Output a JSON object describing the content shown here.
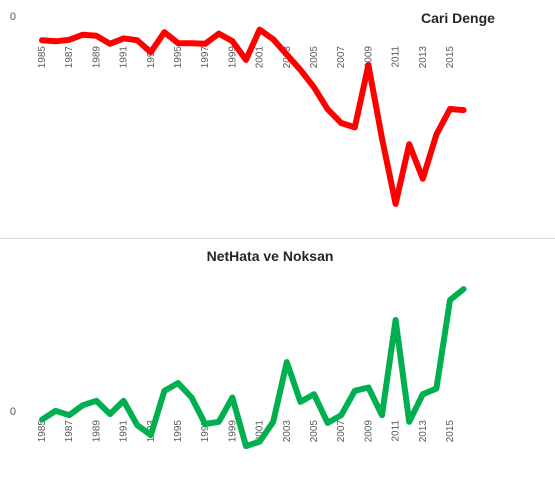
{
  "chart_data": [
    {
      "type": "line",
      "title": "Cari Denge",
      "xlabel": "",
      "ylabel": "",
      "x": [
        1985,
        1986,
        1987,
        1988,
        1989,
        1990,
        1991,
        1992,
        1993,
        1994,
        1995,
        1996,
        1997,
        1998,
        1999,
        2000,
        2001,
        2002,
        2003,
        2004,
        2005,
        2006,
        2007,
        2008,
        2009,
        2010,
        2011,
        2012,
        2013,
        2014,
        2015,
        2016
      ],
      "x_tick_labels": [
        "1985",
        "1987",
        "1989",
        "1991",
        "1993",
        "1995",
        "1997",
        "1999",
        "2001",
        "2003",
        "2005",
        "2007",
        "2009",
        "2011",
        "2013",
        "2015"
      ],
      "y_tick_labels": [
        "0",
        "",
        "",
        "",
        "",
        "",
        "",
        "",
        "",
        ""
      ],
      "ylim": [
        -80000,
        0
      ],
      "grid": false,
      "legend": "none",
      "color": "#ff0000",
      "series": [
        {
          "values": [
            -1000,
            -1500,
            -800,
            1500,
            1000,
            -2600,
            -200,
            -1000,
            -6400,
            2600,
            -2300,
            -2400,
            -2600,
            2000,
            -1400,
            -9900,
            3800,
            -600,
            -7500,
            -14400,
            -22300,
            -32200,
            -38400,
            -40400,
            -12200,
            -45400,
            -75000,
            -48000,
            -63600,
            -43600,
            -32100,
            -32600
          ]
        }
      ]
    },
    {
      "type": "line",
      "title": "NetHata ve Noksan",
      "xlabel": "",
      "ylabel": "",
      "x": [
        1985,
        1986,
        1987,
        1988,
        1989,
        1990,
        1991,
        1992,
        1993,
        1994,
        1995,
        1996,
        1997,
        1998,
        1999,
        2000,
        2001,
        2002,
        2003,
        2004,
        2005,
        2006,
        2007,
        2008,
        2009,
        2010,
        2011,
        2012,
        2013,
        2014,
        2015,
        2016
      ],
      "x_tick_labels": [
        "1985",
        "1987",
        "1989",
        "1991",
        "1993",
        "1995",
        "1997",
        "1999",
        "2001",
        "2003",
        "2005",
        "2007",
        "2009",
        "2011",
        "2013",
        "2015"
      ],
      "y_tick_labels": [
        "",
        "",
        "",
        "",
        "",
        "",
        "0",
        "",
        ""
      ],
      "ylim": [
        -4000,
        12000
      ],
      "grid": false,
      "legend": "none",
      "color": "#00b050",
      "series": [
        {
          "values": [
            -800,
            0,
            -400,
            500,
            900,
            -300,
            900,
            -1300,
            -2200,
            1800,
            2500,
            1200,
            -1200,
            -1000,
            1200,
            -3200,
            -2800,
            -1000,
            4400,
            800,
            1500,
            -1100,
            -400,
            1800,
            2100,
            -400,
            8200,
            -1000,
            1500,
            2000,
            10000,
            11000
          ]
        }
      ]
    }
  ]
}
